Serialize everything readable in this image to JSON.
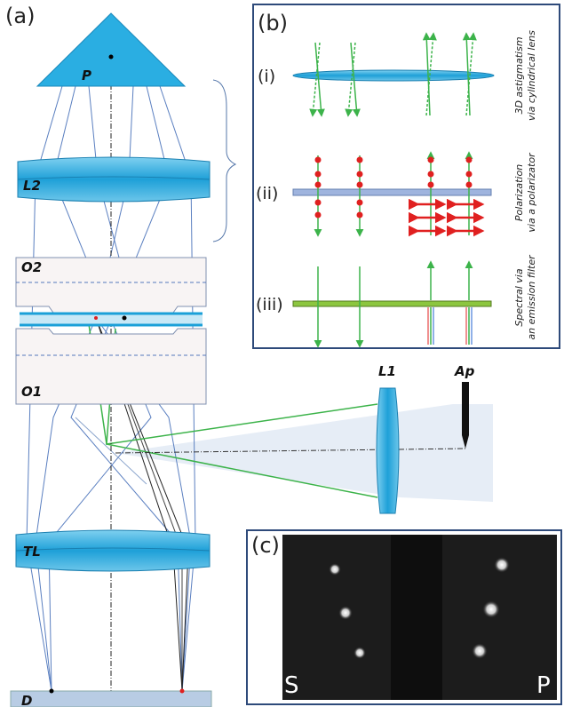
{
  "panel_a": {
    "label": "(a)",
    "components": {
      "prism": "P",
      "lens_l2": "L2",
      "objective_o2": "O2",
      "objective_o1": "O1",
      "lens_l1": "L1",
      "aperture": "Ap",
      "tube_lens": "TL",
      "detector": "D"
    }
  },
  "panel_b": {
    "label": "(b)",
    "rows": [
      {
        "label": "(i)",
        "caption": [
          "3D astigmatism",
          "via cylindrical lens"
        ]
      },
      {
        "label": "(ii)",
        "caption": [
          "Polarization",
          "via a polarizator"
        ]
      },
      {
        "label": "(iii)",
        "caption": [
          "Spectral via",
          "an emission filter"
        ]
      }
    ]
  },
  "panel_c": {
    "label": "(c)",
    "channels": [
      "S",
      "P"
    ]
  }
}
